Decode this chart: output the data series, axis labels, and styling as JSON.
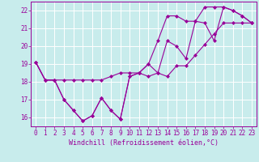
{
  "xlabel": "Windchill (Refroidissement éolien,°C)",
  "background_color": "#c8ecec",
  "grid_color": "#ffffff",
  "line_color": "#990099",
  "x_values": [
    0,
    1,
    2,
    3,
    4,
    5,
    6,
    7,
    8,
    9,
    10,
    11,
    12,
    13,
    14,
    15,
    16,
    17,
    18,
    19,
    20,
    21,
    22,
    23
  ],
  "y_main": [
    19.1,
    18.1,
    18.1,
    17.0,
    16.4,
    15.8,
    16.1,
    17.1,
    16.4,
    15.9,
    18.3,
    18.5,
    19.0,
    18.5,
    20.3,
    20.0,
    19.3,
    21.4,
    21.3,
    20.3,
    22.2,
    22.0,
    21.7,
    21.3
  ],
  "y_min": [
    19.1,
    18.1,
    18.1,
    17.0,
    16.4,
    15.8,
    16.1,
    17.1,
    16.4,
    15.9,
    18.3,
    18.5,
    18.3,
    18.5,
    18.3,
    18.9,
    18.9,
    19.5,
    20.1,
    20.7,
    21.3,
    21.3,
    21.3,
    21.3
  ],
  "y_max": [
    19.1,
    18.1,
    18.1,
    18.1,
    18.1,
    18.1,
    18.1,
    18.1,
    18.3,
    18.5,
    18.5,
    18.5,
    19.0,
    20.3,
    21.7,
    21.7,
    21.4,
    21.4,
    22.2,
    22.2,
    22.2,
    22.0,
    21.7,
    21.3
  ],
  "ylim": [
    15.5,
    22.5
  ],
  "xlim": [
    -0.5,
    23.5
  ],
  "yticks": [
    16,
    17,
    18,
    19,
    20,
    21,
    22
  ],
  "xticks": [
    0,
    1,
    2,
    3,
    4,
    5,
    6,
    7,
    8,
    9,
    10,
    11,
    12,
    13,
    14,
    15,
    16,
    17,
    18,
    19,
    20,
    21,
    22,
    23
  ],
  "tick_fontsize": 5.5,
  "xlabel_fontsize": 6.0,
  "marker_size": 2.0,
  "line_width": 0.8
}
